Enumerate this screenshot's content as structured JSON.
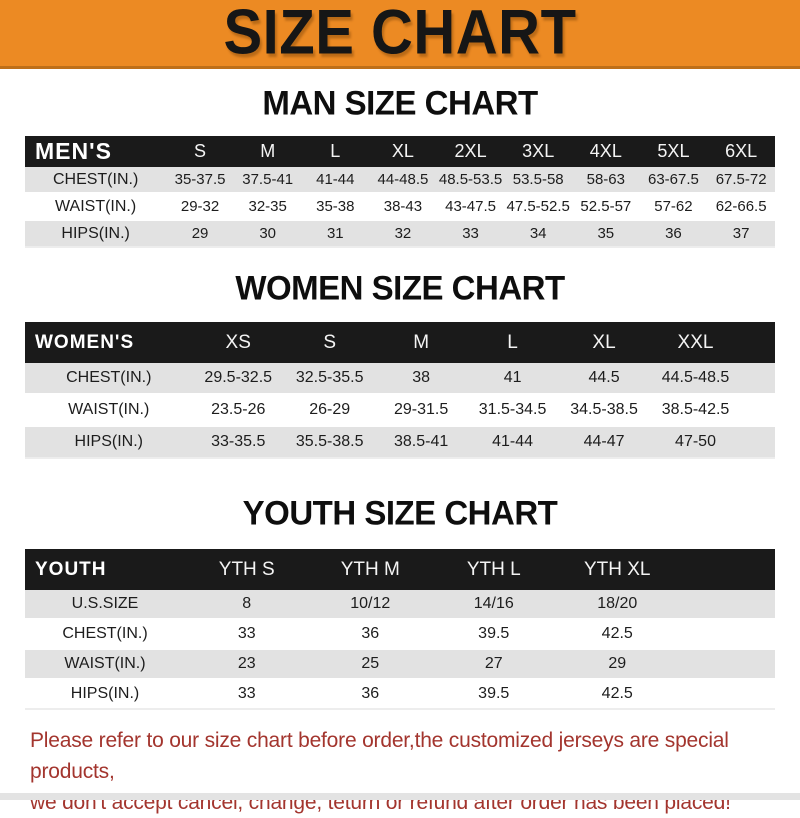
{
  "banner": {
    "title": "SIZE CHART"
  },
  "colors": {
    "banner_bg": "#EC8A23",
    "table_header_bg": "#1A1A1A",
    "row_stripe_bg": "#E2E2E2",
    "footer_text": "#A3352E",
    "heading_text": "#0E0E0E"
  },
  "sections": [
    {
      "id": "men",
      "title": "MAN SIZE CHART",
      "table": {
        "header": [
          "MEN'S",
          "S",
          "M",
          "L",
          "XL",
          "2XL",
          "3XL",
          "4XL",
          "5XL",
          "6XL"
        ],
        "rows": [
          [
            "CHEST(IN.)",
            "35-37.5",
            "37.5-41",
            "41-44",
            "44-48.5",
            "48.5-53.5",
            "53.5-58",
            "58-63",
            "63-67.5",
            "67.5-72"
          ],
          [
            "WAIST(IN.)",
            "29-32",
            "32-35",
            "35-38",
            "38-43",
            "43-47.5",
            "47.5-52.5",
            "52.5-57",
            "57-62",
            "62-66.5"
          ],
          [
            "HIPS(IN.)",
            "29",
            "30",
            "31",
            "32",
            "33",
            "34",
            "35",
            "36",
            "37"
          ]
        ]
      }
    },
    {
      "id": "women",
      "title": "WOMEN SIZE CHART",
      "table": {
        "header": [
          "WOMEN'S",
          "XS",
          "S",
          "M",
          "L",
          "XL",
          "XXL"
        ],
        "rows": [
          [
            "CHEST(IN.)",
            "29.5-32.5",
            "32.5-35.5",
            "38",
            "41",
            "44.5",
            "44.5-48.5"
          ],
          [
            "WAIST(IN.)",
            "23.5-26",
            "26-29",
            "29-31.5",
            "31.5-34.5",
            "34.5-38.5",
            "38.5-42.5"
          ],
          [
            "HIPS(IN.)",
            "33-35.5",
            "35.5-38.5",
            "38.5-41",
            "41-44",
            "44-47",
            "47-50"
          ]
        ]
      }
    },
    {
      "id": "youth",
      "title": "YOUTH SIZE CHART",
      "table": {
        "header": [
          "YOUTH",
          "YTH S",
          "YTH M",
          "YTH L",
          "YTH XL"
        ],
        "rows": [
          [
            "U.S.SIZE",
            "8",
            "10/12",
            "14/16",
            "18/20"
          ],
          [
            "CHEST(IN.)",
            "33",
            "36",
            "39.5",
            "42.5"
          ],
          [
            "WAIST(IN.)",
            "23",
            "25",
            "27",
            "29"
          ],
          [
            "HIPS(IN.)",
            "33",
            "36",
            "39.5",
            "42.5"
          ]
        ]
      }
    }
  ],
  "footer": {
    "line1": "Please refer to our size chart before order,the customized jerseys are special products,",
    "line2": "we don't accept cancel, change, teturn or refund after order has been placed!"
  }
}
